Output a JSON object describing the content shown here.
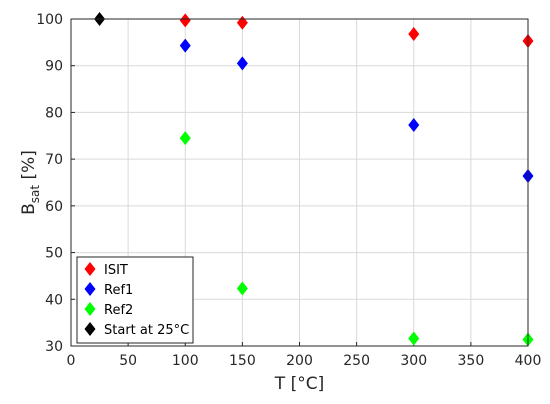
{
  "chart_data": {
    "type": "scatter",
    "xlabel": "T [°C]",
    "ylabel_main": "B",
    "ylabel_sub": "sat",
    "ylabel_unit": " [%]",
    "xlim": [
      0,
      400
    ],
    "ylim": [
      30,
      100
    ],
    "xticks": [
      0,
      50,
      100,
      150,
      200,
      250,
      300,
      350,
      400
    ],
    "yticks": [
      30,
      40,
      50,
      60,
      70,
      80,
      90,
      100
    ],
    "grid": true,
    "legend_position": "bottom-left",
    "marker": "diamond",
    "series": [
      {
        "name": "ISIT",
        "color": "#ff0000",
        "x": [
          100,
          150,
          300,
          400
        ],
        "y": [
          99.7,
          99.2,
          96.8,
          95.3
        ]
      },
      {
        "name": "Ref1",
        "color": "#0000ff",
        "x": [
          100,
          150,
          300,
          400
        ],
        "y": [
          94.3,
          90.5,
          77.3,
          66.4
        ]
      },
      {
        "name": "Ref2",
        "color": "#00ff00",
        "x": [
          100,
          150,
          300,
          400
        ],
        "y": [
          74.5,
          42.3,
          31.6,
          31.4
        ]
      },
      {
        "name": "Start at 25°C",
        "color": "#000000",
        "x": [
          25
        ],
        "y": [
          100
        ]
      }
    ]
  }
}
